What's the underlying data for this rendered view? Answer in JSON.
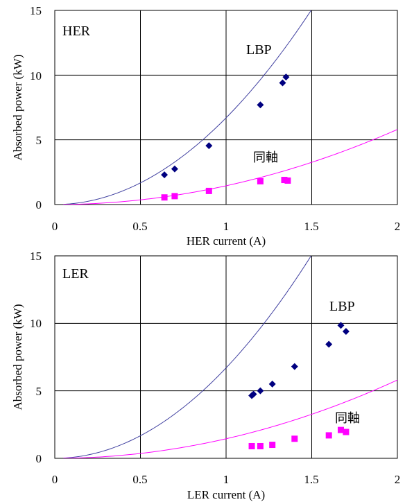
{
  "chart_data": [
    {
      "type": "scatter",
      "panel_label": "HER",
      "xlabel": "HER current (A)",
      "ylabel": "Absorbed power (kW)",
      "xlim": [
        0,
        2
      ],
      "ylim": [
        0,
        15
      ],
      "x_ticks": [
        "0",
        "0.5",
        "1",
        "1.5",
        "2"
      ],
      "y_ticks": [
        "0",
        "5",
        "10",
        "15"
      ],
      "grid": true,
      "annotations": [
        {
          "text": "LBP",
          "x": 1.18,
          "y": 11.8
        },
        {
          "text": "同軸",
          "x": 1.18,
          "y": 3.5
        }
      ],
      "series": [
        {
          "kind": "scatter",
          "marker": "diamond",
          "color": "#000080",
          "points": [
            [
              0.64,
              2.3
            ],
            [
              0.7,
              2.75
            ],
            [
              0.9,
              4.55
            ],
            [
              1.2,
              7.7
            ],
            [
              1.33,
              9.4
            ],
            [
              1.35,
              9.85
            ]
          ]
        },
        {
          "kind": "scatter",
          "marker": "square",
          "color": "#ff00ff",
          "points": [
            [
              0.64,
              0.55
            ],
            [
              0.7,
              0.65
            ],
            [
              0.9,
              1.05
            ],
            [
              1.2,
              1.8
            ],
            [
              1.34,
              1.9
            ],
            [
              1.36,
              1.85
            ]
          ]
        },
        {
          "kind": "line",
          "color": "#4040a0",
          "coef": 6.7,
          "x_range": [
            0.05,
            1.5
          ]
        },
        {
          "kind": "line",
          "color": "#ff00ff",
          "coef": 1.45,
          "x_range": [
            0.05,
            2.0
          ]
        }
      ]
    },
    {
      "type": "scatter",
      "panel_label": "LER",
      "xlabel": "LER current (A)",
      "ylabel": "Absorbed power (kW)",
      "xlim": [
        0,
        2
      ],
      "ylim": [
        0,
        15
      ],
      "x_ticks": [
        "0",
        "0.5",
        "1",
        "1.5",
        "2"
      ],
      "y_ticks": [
        "0",
        "5",
        "10",
        "15"
      ],
      "grid": true,
      "annotations": [
        {
          "text": "LBP",
          "x": 1.6,
          "y": 10.9
        },
        {
          "text": "同軸",
          "x": 1.64,
          "y": 3.0
        }
      ],
      "series": [
        {
          "kind": "scatter",
          "marker": "diamond",
          "color": "#000080",
          "points": [
            [
              1.15,
              4.65
            ],
            [
              1.16,
              4.75
            ],
            [
              1.2,
              5.0
            ],
            [
              1.27,
              5.5
            ],
            [
              1.4,
              6.8
            ],
            [
              1.6,
              8.45
            ],
            [
              1.67,
              9.85
            ],
            [
              1.7,
              9.4
            ]
          ]
        },
        {
          "kind": "scatter",
          "marker": "square",
          "color": "#ff00ff",
          "points": [
            [
              1.15,
              0.9
            ],
            [
              1.2,
              0.9
            ],
            [
              1.27,
              1.0
            ],
            [
              1.4,
              1.45
            ],
            [
              1.6,
              1.7
            ],
            [
              1.67,
              2.1
            ],
            [
              1.7,
              1.95
            ]
          ]
        },
        {
          "kind": "line",
          "color": "#4040a0",
          "coef": 6.7,
          "x_range": [
            0.05,
            1.5
          ]
        },
        {
          "kind": "line",
          "color": "#ff00ff",
          "coef": 1.45,
          "x_range": [
            0.05,
            2.0
          ]
        }
      ]
    }
  ]
}
